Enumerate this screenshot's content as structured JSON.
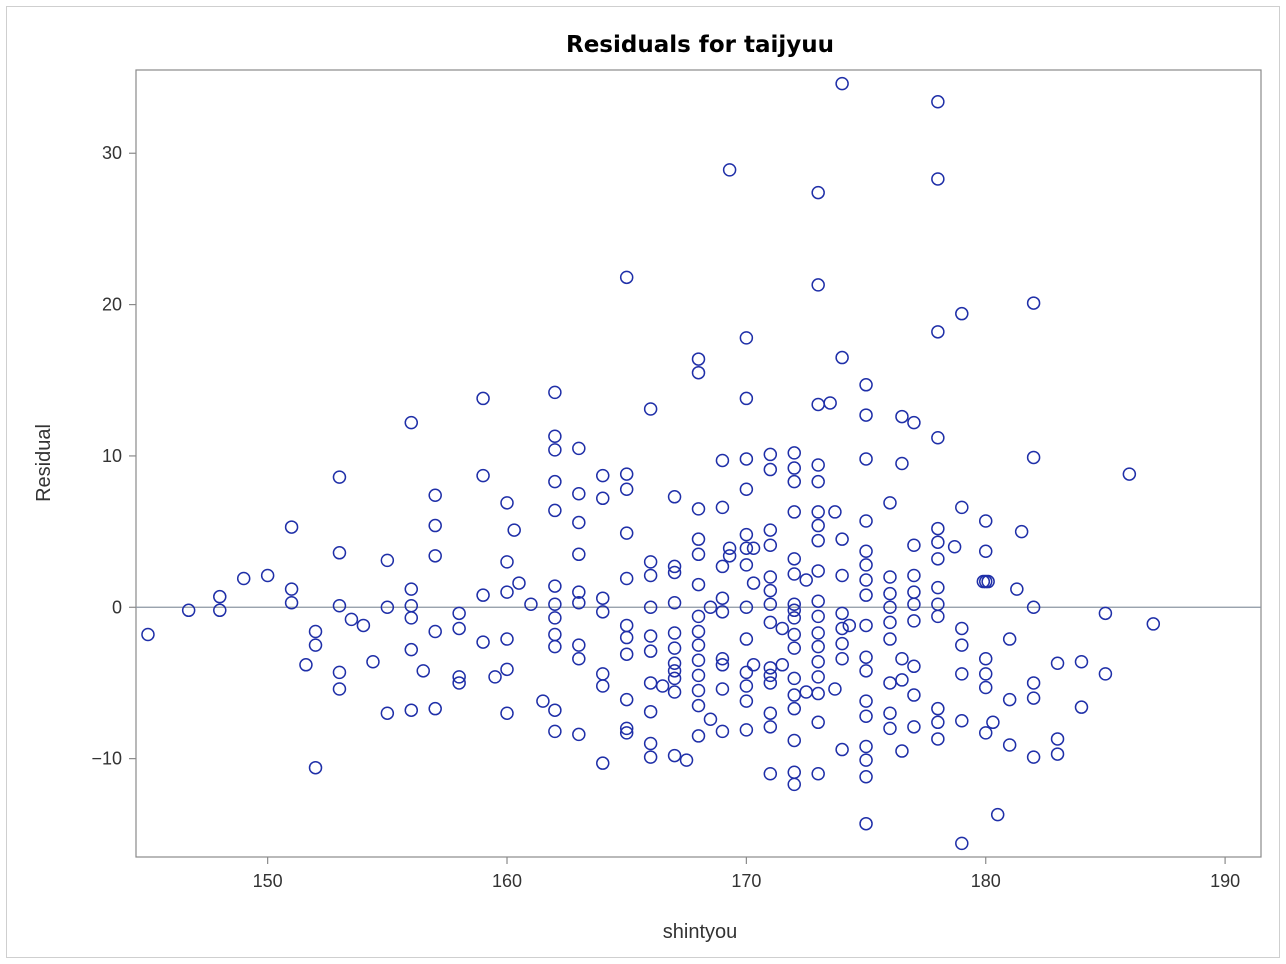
{
  "chart_data": {
    "type": "scatter",
    "title": "Residuals for taijyuu",
    "xlabel": "shintyou",
    "ylabel": "Residual",
    "xlim": [
      144.5,
      191.5
    ],
    "ylim": [
      -16.5,
      35.5
    ],
    "xticks": [
      150,
      160,
      170,
      180,
      190
    ],
    "yticks": [
      -10,
      0,
      10,
      20,
      30
    ],
    "xtick_labels": [
      "150",
      "160",
      "170",
      "180",
      "190"
    ],
    "ytick_labels": [
      "−10",
      "0",
      "10",
      "20",
      "30"
    ],
    "reference_line_y": 0,
    "grid": false,
    "legend": "none",
    "marker_color": "#1f2fa8",
    "refline_color": "#8c96a3",
    "points": [
      [
        145,
        -1.8
      ],
      [
        146.7,
        -0.2
      ],
      [
        148,
        0.7
      ],
      [
        148,
        -0.2
      ],
      [
        149,
        1.9
      ],
      [
        150,
        2.1
      ],
      [
        151,
        5.3
      ],
      [
        151,
        1.2
      ],
      [
        151,
        0.3
      ],
      [
        151.6,
        -3.8
      ],
      [
        152,
        -1.6
      ],
      [
        152,
        -2.5
      ],
      [
        152,
        -10.6
      ],
      [
        153,
        8.6
      ],
      [
        153,
        3.6
      ],
      [
        153,
        0.1
      ],
      [
        153,
        -4.3
      ],
      [
        153,
        -5.4
      ],
      [
        153.5,
        -0.8
      ],
      [
        154,
        -1.2
      ],
      [
        154.4,
        -3.6
      ],
      [
        155,
        3.1
      ],
      [
        155,
        0.0
      ],
      [
        155,
        -7.0
      ],
      [
        156,
        12.2
      ],
      [
        156,
        1.2
      ],
      [
        156,
        0.1
      ],
      [
        156,
        -0.7
      ],
      [
        156,
        -2.8
      ],
      [
        156,
        -6.8
      ],
      [
        156.5,
        -4.2
      ],
      [
        157,
        7.4
      ],
      [
        157,
        5.4
      ],
      [
        157,
        3.4
      ],
      [
        157,
        -1.6
      ],
      [
        157,
        -6.7
      ],
      [
        158,
        -0.4
      ],
      [
        158,
        -1.4
      ],
      [
        158,
        -4.6
      ],
      [
        158,
        -5.0
      ],
      [
        159,
        13.8
      ],
      [
        159,
        8.7
      ],
      [
        159,
        0.8
      ],
      [
        159,
        -2.3
      ],
      [
        159.5,
        -4.6
      ],
      [
        160,
        6.9
      ],
      [
        160,
        3.0
      ],
      [
        160,
        1.0
      ],
      [
        160,
        -2.1
      ],
      [
        160,
        -4.1
      ],
      [
        160,
        -7.0
      ],
      [
        160.3,
        5.1
      ],
      [
        160.5,
        1.6
      ],
      [
        161,
        0.2
      ],
      [
        161.5,
        -6.2
      ],
      [
        162,
        14.2
      ],
      [
        162,
        11.3
      ],
      [
        162,
        10.4
      ],
      [
        162,
        8.3
      ],
      [
        162,
        6.4
      ],
      [
        162,
        1.4
      ],
      [
        162,
        0.2
      ],
      [
        162,
        -0.7
      ],
      [
        162,
        -1.8
      ],
      [
        162,
        -2.6
      ],
      [
        162,
        -6.8
      ],
      [
        162,
        -8.2
      ],
      [
        163,
        10.5
      ],
      [
        163,
        7.5
      ],
      [
        163,
        5.6
      ],
      [
        163,
        3.5
      ],
      [
        163,
        1.0
      ],
      [
        163,
        0.3
      ],
      [
        163,
        -2.5
      ],
      [
        163,
        -3.4
      ],
      [
        163,
        -8.4
      ],
      [
        164,
        8.7
      ],
      [
        164,
        7.2
      ],
      [
        164,
        0.6
      ],
      [
        164,
        -0.3
      ],
      [
        164,
        -4.4
      ],
      [
        164,
        -5.2
      ],
      [
        164,
        -10.3
      ],
      [
        165,
        21.8
      ],
      [
        165,
        8.8
      ],
      [
        165,
        7.8
      ],
      [
        165,
        4.9
      ],
      [
        165,
        1.9
      ],
      [
        165,
        -1.2
      ],
      [
        165,
        -2.0
      ],
      [
        165,
        -3.1
      ],
      [
        165,
        -6.1
      ],
      [
        165,
        -8.0
      ],
      [
        165,
        -8.3
      ],
      [
        166,
        13.1
      ],
      [
        166,
        3.0
      ],
      [
        166,
        2.1
      ],
      [
        166,
        0.0
      ],
      [
        166,
        -1.9
      ],
      [
        166,
        -2.9
      ],
      [
        166,
        -5.0
      ],
      [
        166,
        -6.9
      ],
      [
        166,
        -9.0
      ],
      [
        166,
        -9.9
      ],
      [
        166.5,
        -5.2
      ],
      [
        167,
        7.3
      ],
      [
        167,
        2.7
      ],
      [
        167,
        2.3
      ],
      [
        167,
        0.3
      ],
      [
        167,
        -1.7
      ],
      [
        167,
        -2.7
      ],
      [
        167,
        -3.7
      ],
      [
        167,
        -4.2
      ],
      [
        167,
        -4.7
      ],
      [
        167,
        -5.6
      ],
      [
        167,
        -9.8
      ],
      [
        167.5,
        -10.1
      ],
      [
        168,
        16.4
      ],
      [
        168,
        15.5
      ],
      [
        168,
        6.5
      ],
      [
        168,
        4.5
      ],
      [
        168,
        3.5
      ],
      [
        168,
        1.5
      ],
      [
        168,
        -0.6
      ],
      [
        168,
        -1.6
      ],
      [
        168,
        -2.5
      ],
      [
        168,
        -3.5
      ],
      [
        168,
        -4.5
      ],
      [
        168,
        -5.5
      ],
      [
        168,
        -6.5
      ],
      [
        168,
        -8.5
      ],
      [
        168.5,
        0.0
      ],
      [
        168.5,
        -7.4
      ],
      [
        169,
        9.7
      ],
      [
        169,
        6.6
      ],
      [
        169,
        2.7
      ],
      [
        169,
        0.6
      ],
      [
        169,
        -0.3
      ],
      [
        169,
        -3.4
      ],
      [
        169,
        -3.8
      ],
      [
        169,
        -5.4
      ],
      [
        169,
        -8.2
      ],
      [
        169.3,
        28.9
      ],
      [
        169.3,
        3.9
      ],
      [
        169.3,
        3.4
      ],
      [
        170,
        17.8
      ],
      [
        170,
        13.8
      ],
      [
        170,
        9.8
      ],
      [
        170,
        7.8
      ],
      [
        170,
        4.8
      ],
      [
        170,
        3.9
      ],
      [
        170,
        2.8
      ],
      [
        170,
        0.0
      ],
      [
        170,
        -2.1
      ],
      [
        170,
        -4.3
      ],
      [
        170,
        -5.2
      ],
      [
        170,
        -6.2
      ],
      [
        170,
        -8.1
      ],
      [
        170.3,
        3.9
      ],
      [
        170.3,
        1.6
      ],
      [
        170.3,
        -3.8
      ],
      [
        171,
        10.1
      ],
      [
        171,
        9.1
      ],
      [
        171,
        5.1
      ],
      [
        171,
        4.1
      ],
      [
        171,
        2.0
      ],
      [
        171,
        1.1
      ],
      [
        171,
        0.2
      ],
      [
        171,
        -1.0
      ],
      [
        171,
        -4.0
      ],
      [
        171,
        -4.5
      ],
      [
        171,
        -5.0
      ],
      [
        171,
        -7.0
      ],
      [
        171,
        -7.9
      ],
      [
        171,
        -11.0
      ],
      [
        171.5,
        -1.4
      ],
      [
        171.5,
        -3.8
      ],
      [
        172,
        10.2
      ],
      [
        172,
        9.2
      ],
      [
        172,
        8.3
      ],
      [
        172,
        6.3
      ],
      [
        172,
        3.2
      ],
      [
        172,
        2.2
      ],
      [
        172,
        0.2
      ],
      [
        172,
        -0.2
      ],
      [
        172,
        -0.7
      ],
      [
        172,
        -1.8
      ],
      [
        172,
        -2.7
      ],
      [
        172,
        -4.7
      ],
      [
        172,
        -5.8
      ],
      [
        172,
        -6.7
      ],
      [
        172,
        -8.8
      ],
      [
        172,
        -10.9
      ],
      [
        172,
        -11.7
      ],
      [
        172.5,
        1.8
      ],
      [
        172.5,
        -5.6
      ],
      [
        173,
        27.4
      ],
      [
        173,
        21.3
      ],
      [
        173,
        13.4
      ],
      [
        173,
        9.4
      ],
      [
        173,
        8.3
      ],
      [
        173,
        6.3
      ],
      [
        173,
        5.4
      ],
      [
        173,
        4.4
      ],
      [
        173,
        2.4
      ],
      [
        173,
        0.4
      ],
      [
        173,
        -0.6
      ],
      [
        173,
        -1.7
      ],
      [
        173,
        -2.6
      ],
      [
        173,
        -3.6
      ],
      [
        173,
        -4.6
      ],
      [
        173,
        -5.7
      ],
      [
        173,
        -7.6
      ],
      [
        173,
        -11.0
      ],
      [
        173.5,
        13.5
      ],
      [
        173.7,
        6.3
      ],
      [
        173.7,
        -5.4
      ],
      [
        174,
        34.6
      ],
      [
        174,
        16.5
      ],
      [
        174,
        4.5
      ],
      [
        174,
        2.1
      ],
      [
        174,
        -0.4
      ],
      [
        174,
        -1.4
      ],
      [
        174,
        -2.4
      ],
      [
        174,
        -3.4
      ],
      [
        174,
        -9.4
      ],
      [
        174.3,
        -1.2
      ],
      [
        175,
        14.7
      ],
      [
        175,
        12.7
      ],
      [
        175,
        9.8
      ],
      [
        175,
        5.7
      ],
      [
        175,
        3.7
      ],
      [
        175,
        2.8
      ],
      [
        175,
        1.8
      ],
      [
        175,
        0.8
      ],
      [
        175,
        -1.2
      ],
      [
        175,
        -3.3
      ],
      [
        175,
        -4.2
      ],
      [
        175,
        -6.2
      ],
      [
        175,
        -7.2
      ],
      [
        175,
        -9.2
      ],
      [
        175,
        -10.1
      ],
      [
        175,
        -11.2
      ],
      [
        175,
        -14.3
      ],
      [
        176,
        6.9
      ],
      [
        176,
        2.0
      ],
      [
        176,
        0.9
      ],
      [
        176,
        0.0
      ],
      [
        176,
        -1.0
      ],
      [
        176,
        -2.1
      ],
      [
        176,
        -5.0
      ],
      [
        176,
        -7.0
      ],
      [
        176,
        -8.0
      ],
      [
        176.5,
        12.6
      ],
      [
        176.5,
        9.5
      ],
      [
        176.5,
        -3.4
      ],
      [
        176.5,
        -4.8
      ],
      [
        176.5,
        -9.5
      ],
      [
        177,
        12.2
      ],
      [
        177,
        4.1
      ],
      [
        177,
        2.1
      ],
      [
        177,
        1.0
      ],
      [
        177,
        0.2
      ],
      [
        177,
        -0.9
      ],
      [
        177,
        -3.9
      ],
      [
        177,
        -5.8
      ],
      [
        177,
        -7.9
      ],
      [
        178,
        33.4
      ],
      [
        178,
        28.3
      ],
      [
        178,
        18.2
      ],
      [
        178,
        11.2
      ],
      [
        178,
        5.2
      ],
      [
        178,
        4.3
      ],
      [
        178,
        3.2
      ],
      [
        178,
        1.3
      ],
      [
        178,
        0.2
      ],
      [
        178,
        -0.6
      ],
      [
        178,
        -6.7
      ],
      [
        178,
        -7.6
      ],
      [
        178,
        -8.7
      ],
      [
        178.7,
        4.0
      ],
      [
        179,
        19.4
      ],
      [
        179,
        6.6
      ],
      [
        179,
        -1.4
      ],
      [
        179,
        -2.5
      ],
      [
        179,
        -4.4
      ],
      [
        179,
        -7.5
      ],
      [
        179,
        -15.6
      ],
      [
        180,
        5.7
      ],
      [
        180,
        3.7
      ],
      [
        180,
        1.7
      ],
      [
        180,
        -3.4
      ],
      [
        180,
        -4.4
      ],
      [
        180,
        -5.3
      ],
      [
        180,
        -8.3
      ],
      [
        179.9,
        1.7
      ],
      [
        180.1,
        1.7
      ],
      [
        180.3,
        -7.6
      ],
      [
        180.5,
        -13.7
      ],
      [
        181,
        -2.1
      ],
      [
        181,
        -6.1
      ],
      [
        181,
        -9.1
      ],
      [
        181.3,
        1.2
      ],
      [
        181.5,
        5.0
      ],
      [
        182,
        20.1
      ],
      [
        182,
        9.9
      ],
      [
        182,
        0.0
      ],
      [
        182,
        -5.0
      ],
      [
        182,
        -6.0
      ],
      [
        182,
        -9.9
      ],
      [
        183,
        -3.7
      ],
      [
        183,
        -8.7
      ],
      [
        183,
        -9.7
      ],
      [
        184,
        -3.6
      ],
      [
        184,
        -6.6
      ],
      [
        185,
        -0.4
      ],
      [
        185,
        -4.4
      ],
      [
        186,
        8.8
      ],
      [
        187,
        -1.1
      ]
    ]
  }
}
